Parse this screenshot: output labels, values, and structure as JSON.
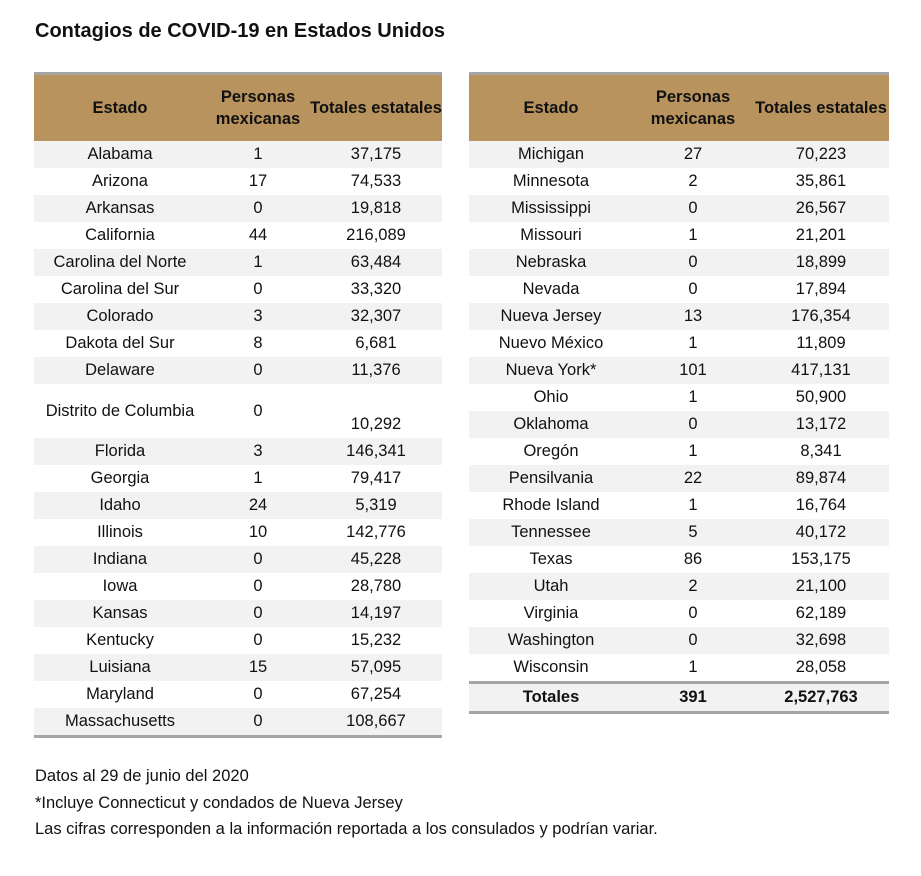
{
  "title": "Contagios de COVID-19 en Estados Unidos",
  "headers": {
    "estado": "Estado",
    "personas": "Personas mexicanas",
    "totales": "Totales estatales"
  },
  "left": [
    [
      "Alabama",
      "1",
      "37,175"
    ],
    [
      "Arizona",
      "17",
      "74,533"
    ],
    [
      "Arkansas",
      "0",
      "19,818"
    ],
    [
      "California",
      "44",
      "216,089"
    ],
    [
      "Carolina del Norte",
      "1",
      "63,484"
    ],
    [
      "Carolina del Sur",
      "0",
      "33,320"
    ],
    [
      "Colorado",
      "3",
      "32,307"
    ],
    [
      "Dakota del Sur",
      "8",
      "6,681"
    ],
    [
      "Delaware",
      "0",
      "11,376"
    ],
    [
      "Distrito de Columbia",
      "0",
      "10,292"
    ],
    [
      "Florida",
      "3",
      "146,341"
    ],
    [
      "Georgia",
      "1",
      "79,417"
    ],
    [
      "Idaho",
      "24",
      "5,319"
    ],
    [
      "Illinois",
      "10",
      "142,776"
    ],
    [
      "Indiana",
      "0",
      "45,228"
    ],
    [
      "Iowa",
      "0",
      "28,780"
    ],
    [
      "Kansas",
      "0",
      "14,197"
    ],
    [
      "Kentucky",
      "0",
      "15,232"
    ],
    [
      "Luisiana",
      "15",
      "57,095"
    ],
    [
      "Maryland",
      "0",
      "67,254"
    ],
    [
      "Massachusetts",
      "0",
      "108,667"
    ]
  ],
  "right": [
    [
      "Michigan",
      "27",
      "70,223"
    ],
    [
      "Minnesota",
      "2",
      "35,861"
    ],
    [
      "Mississippi",
      "0",
      "26,567"
    ],
    [
      "Missouri",
      "1",
      "21,201"
    ],
    [
      "Nebraska",
      "0",
      "18,899"
    ],
    [
      "Nevada",
      "0",
      "17,894"
    ],
    [
      "Nueva Jersey",
      "13",
      "176,354"
    ],
    [
      "Nuevo México",
      "1",
      "11,809"
    ],
    [
      "Nueva York*",
      "101",
      "417,131"
    ],
    [
      "Ohio",
      "1",
      "50,900"
    ],
    [
      "Oklahoma",
      "0",
      "13,172"
    ],
    [
      "Oregón",
      "1",
      "8,341"
    ],
    [
      "Pensilvania",
      "22",
      "89,874"
    ],
    [
      "Rhode Island",
      "1",
      "16,764"
    ],
    [
      "Tennessee",
      "5",
      "40,172"
    ],
    [
      "Texas",
      "86",
      "153,175"
    ],
    [
      "Utah",
      "2",
      "21,100"
    ],
    [
      "Virginia",
      "0",
      "62,189"
    ],
    [
      "Washington",
      "0",
      "32,698"
    ],
    [
      "Wisconsin",
      "1",
      "28,058"
    ]
  ],
  "totals": [
    "Totales",
    "391",
    "2,527,763"
  ],
  "notes": [
    "Datos al 29 de junio del 2020",
    "*Incluye Connecticut y condados de Nueva Jersey",
    "Las cifras corresponden a la información reportada a los consulados y podrían variar."
  ]
}
